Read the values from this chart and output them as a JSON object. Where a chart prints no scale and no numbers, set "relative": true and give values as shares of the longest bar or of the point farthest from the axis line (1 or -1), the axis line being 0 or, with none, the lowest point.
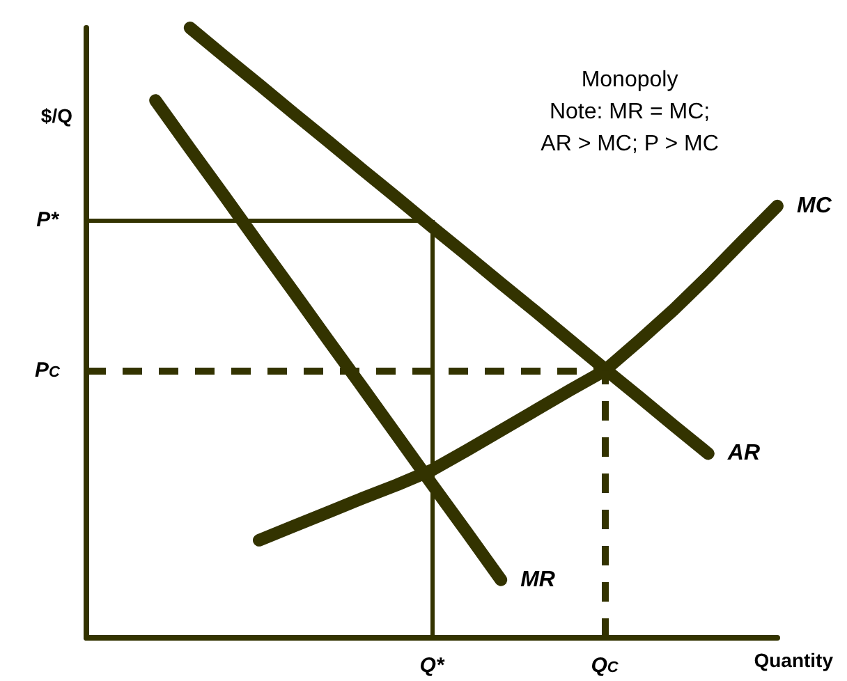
{
  "chart_data": {
    "type": "line",
    "relative": true,
    "xlabel": "Quantity",
    "ylabel": "$/Q",
    "annotations": [
      "Monopoly\nNote: MR = MC;\nAR > MC; P > MC"
    ],
    "categories": [
      null,
      null,
      null,
      null,
      null,
      null,
      null,
      null,
      null,
      null,
      "Q*",
      null,
      null,
      null,
      null,
      "Q$_{C}$",
      null,
      null,
      null,
      null,
      null
    ],
    "grid": false,
    "legend": false,
    "line_style": "solid",
    "ref_lines": [
      {
        "axis": "y",
        "value": 0.685,
        "label": "P*",
        "line_style": "solid",
        "color": "#333300"
      },
      {
        "axis": "y",
        "value": 0.438,
        "label": "P$_{C}$",
        "line_style": "dashed",
        "color": "#333300"
      },
      {
        "axis": "x",
        "value": "Q*",
        "line_style": "solid",
        "color": "#333300"
      },
      {
        "axis": "x",
        "value": "Q$_{C}$",
        "line_style": "dashed",
        "color": "#333300"
      }
    ],
    "series": [
      {
        "name": "AR",
        "color": "#333300",
        "values": [
          null,
          null,
          null,
          1,
          0.953,
          0.907,
          0.86,
          0.814,
          0.767,
          0.721,
          0.674,
          0.628,
          0.581,
          0.535,
          0.488,
          0.441,
          0.395,
          0.348,
          0.302,
          null,
          null
        ]
      },
      {
        "name": "MR",
        "color": "#333300",
        "values": [
          null,
          null,
          0.881,
          0.802,
          0.724,
          0.645,
          0.567,
          0.488,
          0.41,
          0.331,
          0.252,
          0.174,
          0.095,
          null,
          null,
          null,
          null,
          null,
          null,
          null,
          null
        ]
      },
      {
        "name": "MC",
        "color": "#333300",
        "values": [
          null,
          null,
          null,
          null,
          null,
          0.16,
          0.183,
          0.206,
          0.229,
          0.251,
          0.275,
          0.307,
          0.34,
          0.373,
          0.406,
          0.438,
          0.487,
          0.538,
          0.593,
          0.651,
          0.708
        ]
      }
    ]
  }
}
